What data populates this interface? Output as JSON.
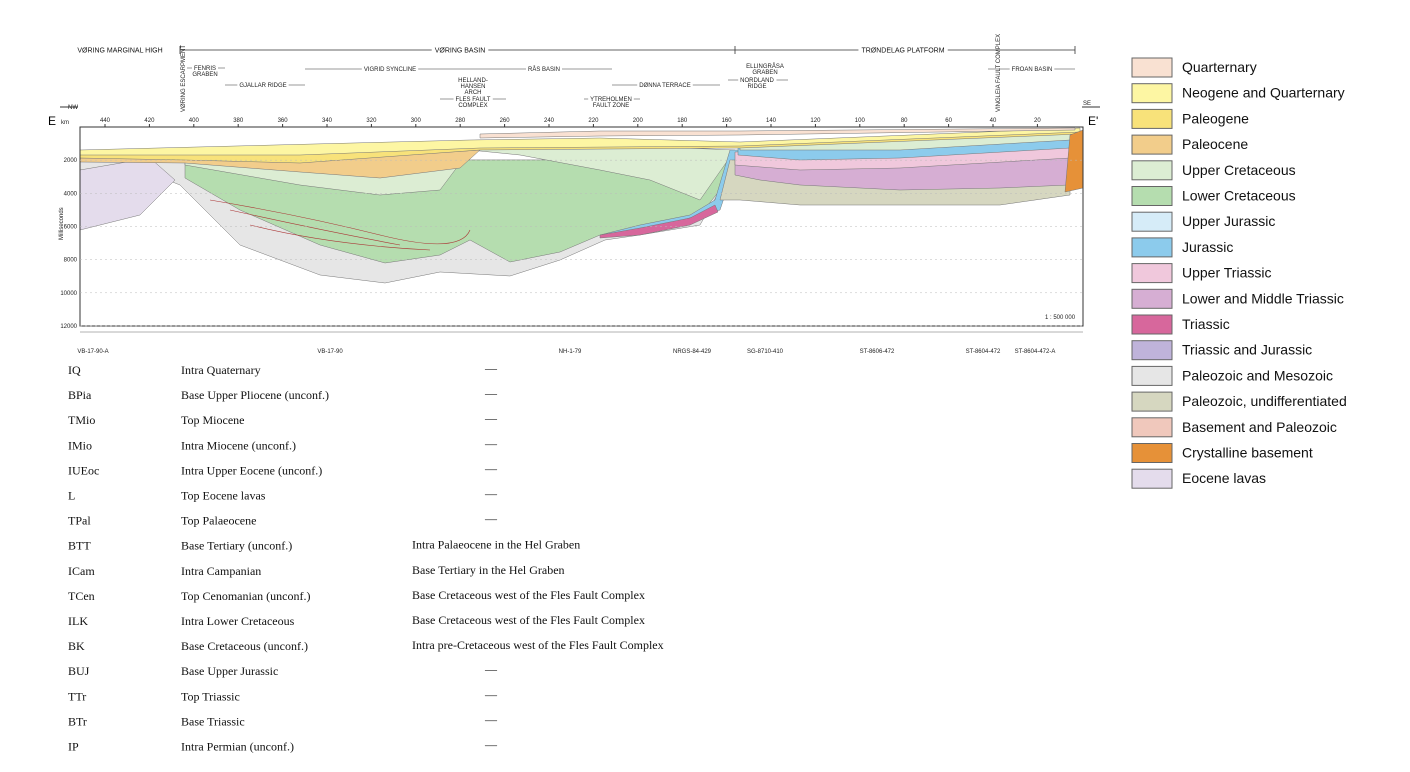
{
  "section": {
    "start": "E",
    "end": "E'",
    "left_direction": "NW",
    "right_direction": "SE",
    "x_axis_label": "km",
    "y_axis_label": "Milliseconds",
    "scale": "1 : 500 000",
    "provinces": [
      "VØRING MARGINAL HIGH",
      "VØRING BASIN",
      "TRØNDELAG PLATFORM"
    ],
    "structures": [
      {
        "lines": [
          "FENRIS",
          "GRABEN"
        ]
      },
      {
        "lines": [
          "GJALLAR RIDGE"
        ]
      },
      {
        "lines": [
          "VIGRID SYNCLINE"
        ]
      },
      {
        "lines": [
          "HELLAND-",
          "HANSEN",
          "ARCH"
        ]
      },
      {
        "lines": [
          "FLES FAULT",
          "COMPLEX"
        ]
      },
      {
        "lines": [
          "RÅS BASIN"
        ]
      },
      {
        "lines": [
          "DØNNA TERRACE"
        ]
      },
      {
        "lines": [
          "YTREHOLMEN",
          "FAULT ZONE"
        ]
      },
      {
        "lines": [
          "ELLINGRÅSA",
          "GRABEN"
        ]
      },
      {
        "lines": [
          "NORDLAND",
          "RIDGE"
        ]
      },
      {
        "lines": [
          "FROAN BASIN"
        ]
      }
    ],
    "vertical_labels": [
      "VØRING ESCARPMENT",
      "VINGLEIA FAULT COMPLEX"
    ],
    "km_ticks": [
      440,
      420,
      400,
      380,
      360,
      340,
      320,
      300,
      280,
      260,
      240,
      220,
      200,
      180,
      160,
      140,
      120,
      100,
      80,
      60,
      40,
      20
    ],
    "ms_ticks": [
      2000,
      4000,
      6000,
      8000,
      10000,
      12000
    ],
    "seismic_lines": [
      "VB-17-90-A",
      "VB-17-90",
      "NH-1-79",
      "NRGS-84-429",
      "SG-8710-410",
      "ST-8606-472",
      "ST-8604-472",
      "ST-8604-472-A"
    ]
  },
  "legend": [
    {
      "label": "Quarternary",
      "color": "#f9e1d2"
    },
    {
      "label": "Neogene and Quarternary",
      "color": "#fdf6a3"
    },
    {
      "label": "Paleogene",
      "color": "#f8e27a"
    },
    {
      "label": "Paleocene",
      "color": "#f2cd8b"
    },
    {
      "label": "Upper Cretaceous",
      "color": "#dcedd3"
    },
    {
      "label": "Lower Cretaceous",
      "color": "#b5ddaf"
    },
    {
      "label": "Upper Jurassic",
      "color": "#d6ecf8"
    },
    {
      "label": "Jurassic",
      "color": "#8ccbec"
    },
    {
      "label": "Upper Triassic",
      "color": "#f0c8dc"
    },
    {
      "label": "Lower and Middle Triassic",
      "color": "#d6aed3"
    },
    {
      "label": "Triassic",
      "color": "#d7679c"
    },
    {
      "label": "Triassic and Jurassic",
      "color": "#bfb3da"
    },
    {
      "label": "Paleozoic and Mesozoic",
      "color": "#e6e6e6"
    },
    {
      "label": "Paleozoic, undifferentiated",
      "color": "#d6d7c0"
    },
    {
      "label": "Basement and Paleozoic",
      "color": "#f0c8bc"
    },
    {
      "label": "Crystalline basement",
      "color": "#e69138"
    },
    {
      "label": "Eocene lavas",
      "color": "#e4dcec"
    }
  ],
  "horizons": [
    {
      "code": "IQ",
      "name": "Intra Quaternary",
      "note": "—"
    },
    {
      "code": "BPia",
      "name": "Base Upper Pliocene (unconf.)",
      "note": "—"
    },
    {
      "code": "TMio",
      "name": "Top Miocene",
      "note": "—"
    },
    {
      "code": "IMio",
      "name": "Intra Miocene (unconf.)",
      "note": "—"
    },
    {
      "code": "IUEoc",
      "name": "Intra Upper Eocene (unconf.)",
      "note": "—"
    },
    {
      "code": "L",
      "name": "Top Eocene lavas",
      "note": "—"
    },
    {
      "code": "TPal",
      "name": "Top Palaeocene",
      "note": "—"
    },
    {
      "code": "BTT",
      "name": "Base Tertiary (unconf.)",
      "note": "Intra Palaeocene in the Hel Graben"
    },
    {
      "code": "ICam",
      "name": "Intra Campanian",
      "note": "Base Tertiary in the Hel Graben"
    },
    {
      "code": "TCen",
      "name": "Top Cenomanian (unconf.)",
      "note": "Base Cretaceous west of the Fles Fault Complex"
    },
    {
      "code": "ILK",
      "name": "Intra Lower Cretaceous",
      "note": "Base Cretaceous west of the Fles Fault Complex"
    },
    {
      "code": "BK",
      "name": "Base Cretaceous (unconf.)",
      "note": "Intra pre-Cretaceous west of the Fles Fault Complex"
    },
    {
      "code": "BUJ",
      "name": "Base Upper Jurassic",
      "note": "—"
    },
    {
      "code": "TTr",
      "name": "Top Triassic",
      "note": "—"
    },
    {
      "code": "BTr",
      "name": "Base Triassic",
      "note": "—"
    },
    {
      "code": "IP",
      "name": "Intra Permian (unconf.)",
      "note": "—"
    }
  ]
}
